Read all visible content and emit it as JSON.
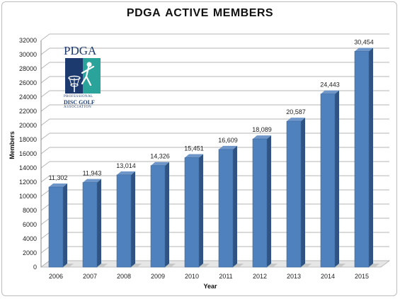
{
  "chart_data": {
    "type": "bar",
    "title_words": [
      "PDGA",
      "ACTIVE",
      "MEMBERS"
    ],
    "categories": [
      "2006",
      "2007",
      "2008",
      "2009",
      "2010",
      "2011",
      "2012",
      "2013",
      "2014",
      "2015"
    ],
    "values": [
      11302,
      11943,
      13014,
      14326,
      15451,
      16609,
      18089,
      20587,
      24443,
      30454
    ],
    "data_labels": [
      "11,302",
      "11,943",
      "13,014",
      "14,326",
      "15,451",
      "16,609",
      "18,089",
      "20,587",
      "24,443",
      "30,454"
    ],
    "xlabel": "Year",
    "ylabel": "Members",
    "ylim": [
      0,
      32000
    ],
    "yticks": [
      "0",
      "2000",
      "4000",
      "6000",
      "8000",
      "10000",
      "12000",
      "14000",
      "16000",
      "18000",
      "20000",
      "22000",
      "24000",
      "26000",
      "28000",
      "30000",
      "32000"
    ],
    "grid": true,
    "legend": "none",
    "bar_color": "#4f81bd",
    "bar_side_color": "#2f5483",
    "bar_top_color": "#6f96c8"
  },
  "logo": {
    "name": "pdga-logo",
    "lettering": "PDGA",
    "sub1": "PROFESSIONAL",
    "sub2": "DISC GOLF",
    "sub3": "ASSOCIATION"
  }
}
